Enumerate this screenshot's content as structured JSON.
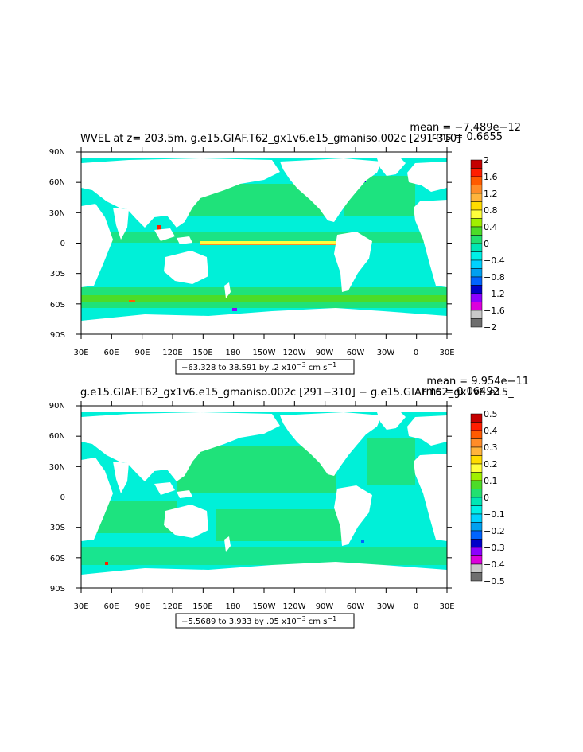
{
  "panels": [
    {
      "title": "WVEL at z= 203.5m, g.e15.GIAF.T62_gx1v6.e15_gmaniso.002c [291-310]",
      "mean_text": "mean = −7.489e−12",
      "rms_text": "rms = 0.6655",
      "range_text": "−63.328 to 38.591 by .2 x10",
      "range_exp": "−3",
      "range_units": " cm s",
      "range_units_exp": "−1",
      "lon_ticks": [
        "30E",
        "60E",
        "90E",
        "120E",
        "150E",
        "180",
        "150W",
        "120W",
        "90W",
        "60W",
        "30W",
        "0",
        "30E"
      ],
      "lat_ticks": [
        "90N",
        "60N",
        "30N",
        "0",
        "30S",
        "60S",
        "90S"
      ],
      "colorbar_labels": [
        "2",
        "1.6",
        "1.2",
        "0.8",
        "0.4",
        "0",
        "−0.4",
        "−0.8",
        "−1.2",
        "−1.6",
        "−2"
      ]
    },
    {
      "title": "g.e15.GIAF.T62_gx1v6.e15_gmaniso.002c [291−310] − g.e15.GIAF.T62_gx1v6.e15_",
      "mean_text": "mean = 9.954e−11",
      "rms_text": "rms = 0.06492",
      "range_text": "−5.5689 to 3.933 by .05 x10",
      "range_exp": "−3",
      "range_units": " cm s",
      "range_units_exp": "−1",
      "lon_ticks": [
        "30E",
        "60E",
        "90E",
        "120E",
        "150E",
        "180",
        "150W",
        "120W",
        "90W",
        "60W",
        "30W",
        "0",
        "30E"
      ],
      "lat_ticks": [
        "90N",
        "60N",
        "30N",
        "0",
        "30S",
        "60S",
        "90S"
      ],
      "colorbar_labels": [
        "0.5",
        "0.4",
        "0.3",
        "0.2",
        "0.1",
        "0",
        "−0.1",
        "−0.2",
        "−0.3",
        "−0.4",
        "−0.5"
      ]
    }
  ],
  "colors": {
    "land": "#ffffff",
    "ocean_main": "#00f0d8",
    "ocean_green": "#22e070",
    "palette": [
      "#c40000",
      "#ff1e00",
      "#ff5a00",
      "#ff8c28",
      "#ffb43c",
      "#ffdc00",
      "#ffff3c",
      "#a0f000",
      "#4cdc28",
      "#22e070",
      "#00e6b4",
      "#00f0e6",
      "#00d2ff",
      "#00a0f0",
      "#0064ff",
      "#0000c8",
      "#8c00ff",
      "#dc00dc",
      "#c8c8c8",
      "#6e6e6e"
    ]
  }
}
